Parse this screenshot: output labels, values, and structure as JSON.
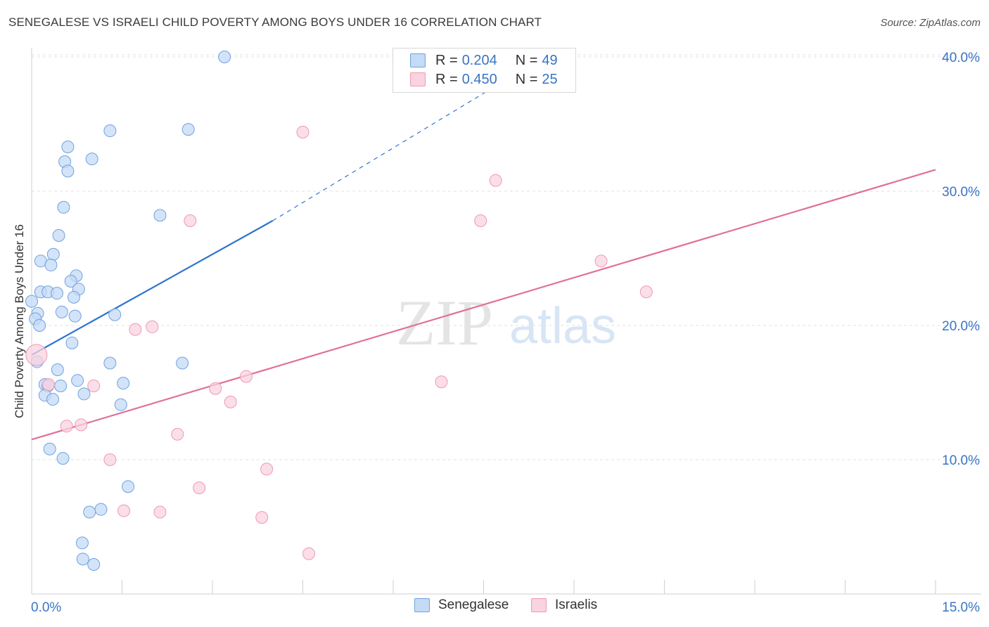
{
  "title": "SENEGALESE VS ISRAELI CHILD POVERTY AMONG BOYS UNDER 16 CORRELATION CHART",
  "source": "Source: ZipAtlas.com",
  "watermark": {
    "zip": "ZIP",
    "atlas": "atlas"
  },
  "legend": {
    "rows": [
      {
        "r_label": "R = ",
        "r_value": "0.204",
        "n_label": "N = ",
        "n_value": "49",
        "color": "#a9c8f0"
      },
      {
        "r_label": "R = ",
        "r_value": "0.450",
        "n_label": "N = ",
        "n_value": "25",
        "color": "#f5b8cb"
      }
    ]
  },
  "chart_data": {
    "type": "scatter",
    "title": "SENEGALESE VS ISRAELI CHILD POVERTY AMONG BOYS UNDER 16 CORRELATION CHART",
    "xlabel": "",
    "ylabel": "Child Poverty Among Boys Under 16",
    "xlim": [
      0,
      15
    ],
    "ylim": [
      0,
      42
    ],
    "x_tick_labels": [
      "0.0%",
      "15.0%"
    ],
    "y_ticks": [
      10,
      20,
      30,
      40
    ],
    "y_tick_labels": [
      "10.0%",
      "20.0%",
      "30.0%",
      "40.0%"
    ],
    "grid": true,
    "legend_position": "top-center",
    "series": [
      {
        "name": "Senegalese",
        "color": "#6fa3e0",
        "fill": "#c4daf5",
        "line_color": "#2f74cf",
        "trend": {
          "x0": 0.0,
          "y0": 17.8,
          "x1": 4.0,
          "y1": 27.8,
          "dash_x1": 8.5,
          "dash_y1": 40.0
        },
        "points": [
          [
            3.2,
            40.0
          ],
          [
            1.3,
            34.5
          ],
          [
            2.6,
            34.6
          ],
          [
            0.6,
            33.3
          ],
          [
            1.0,
            32.4
          ],
          [
            0.55,
            32.2
          ],
          [
            0.6,
            31.5
          ],
          [
            0.53,
            28.8
          ],
          [
            2.13,
            28.2
          ],
          [
            0.45,
            26.7
          ],
          [
            0.36,
            25.3
          ],
          [
            0.15,
            24.8
          ],
          [
            0.32,
            24.5
          ],
          [
            0.74,
            23.7
          ],
          [
            0.65,
            23.3
          ],
          [
            0.78,
            22.7
          ],
          [
            0.15,
            22.5
          ],
          [
            0.27,
            22.5
          ],
          [
            0.42,
            22.4
          ],
          [
            0.7,
            22.1
          ],
          [
            0.0,
            21.8
          ],
          [
            0.1,
            20.9
          ],
          [
            0.5,
            21.0
          ],
          [
            0.72,
            20.7
          ],
          [
            1.38,
            20.8
          ],
          [
            0.06,
            20.5
          ],
          [
            0.13,
            20.0
          ],
          [
            0.67,
            18.7
          ],
          [
            0.09,
            17.3
          ],
          [
            1.3,
            17.2
          ],
          [
            2.5,
            17.2
          ],
          [
            0.43,
            16.7
          ],
          [
            0.76,
            15.9
          ],
          [
            1.52,
            15.7
          ],
          [
            0.22,
            15.6
          ],
          [
            0.48,
            15.5
          ],
          [
            0.27,
            15.5
          ],
          [
            0.87,
            14.9
          ],
          [
            0.22,
            14.8
          ],
          [
            0.35,
            14.5
          ],
          [
            1.48,
            14.1
          ],
          [
            0.3,
            10.8
          ],
          [
            0.52,
            10.1
          ],
          [
            1.6,
            8.0
          ],
          [
            1.15,
            6.3
          ],
          [
            0.96,
            6.1
          ],
          [
            0.84,
            3.8
          ],
          [
            0.85,
            2.6
          ],
          [
            1.03,
            2.2
          ]
        ]
      },
      {
        "name": "Israelis",
        "color": "#ee9ab4",
        "fill": "#f9d3df",
        "line_color": "#e0709a",
        "trend": {
          "x0": 0.0,
          "y0": 11.5,
          "x1": 15.0,
          "y1": 31.6
        },
        "points": [
          [
            4.5,
            34.4
          ],
          [
            7.7,
            30.8
          ],
          [
            2.63,
            27.8
          ],
          [
            7.45,
            27.8
          ],
          [
            9.45,
            24.8
          ],
          [
            10.2,
            22.5
          ],
          [
            2.0,
            19.9
          ],
          [
            1.72,
            19.7
          ],
          [
            0.08,
            17.8
          ],
          [
            3.56,
            16.2
          ],
          [
            6.8,
            15.8
          ],
          [
            0.28,
            15.6
          ],
          [
            1.03,
            15.5
          ],
          [
            3.05,
            15.3
          ],
          [
            3.3,
            14.3
          ],
          [
            0.58,
            12.5
          ],
          [
            0.82,
            12.6
          ],
          [
            2.42,
            11.9
          ],
          [
            1.3,
            10.0
          ],
          [
            3.9,
            9.3
          ],
          [
            2.78,
            7.9
          ],
          [
            1.53,
            6.2
          ],
          [
            2.13,
            6.1
          ],
          [
            3.82,
            5.7
          ],
          [
            4.6,
            3.0
          ]
        ]
      }
    ]
  }
}
